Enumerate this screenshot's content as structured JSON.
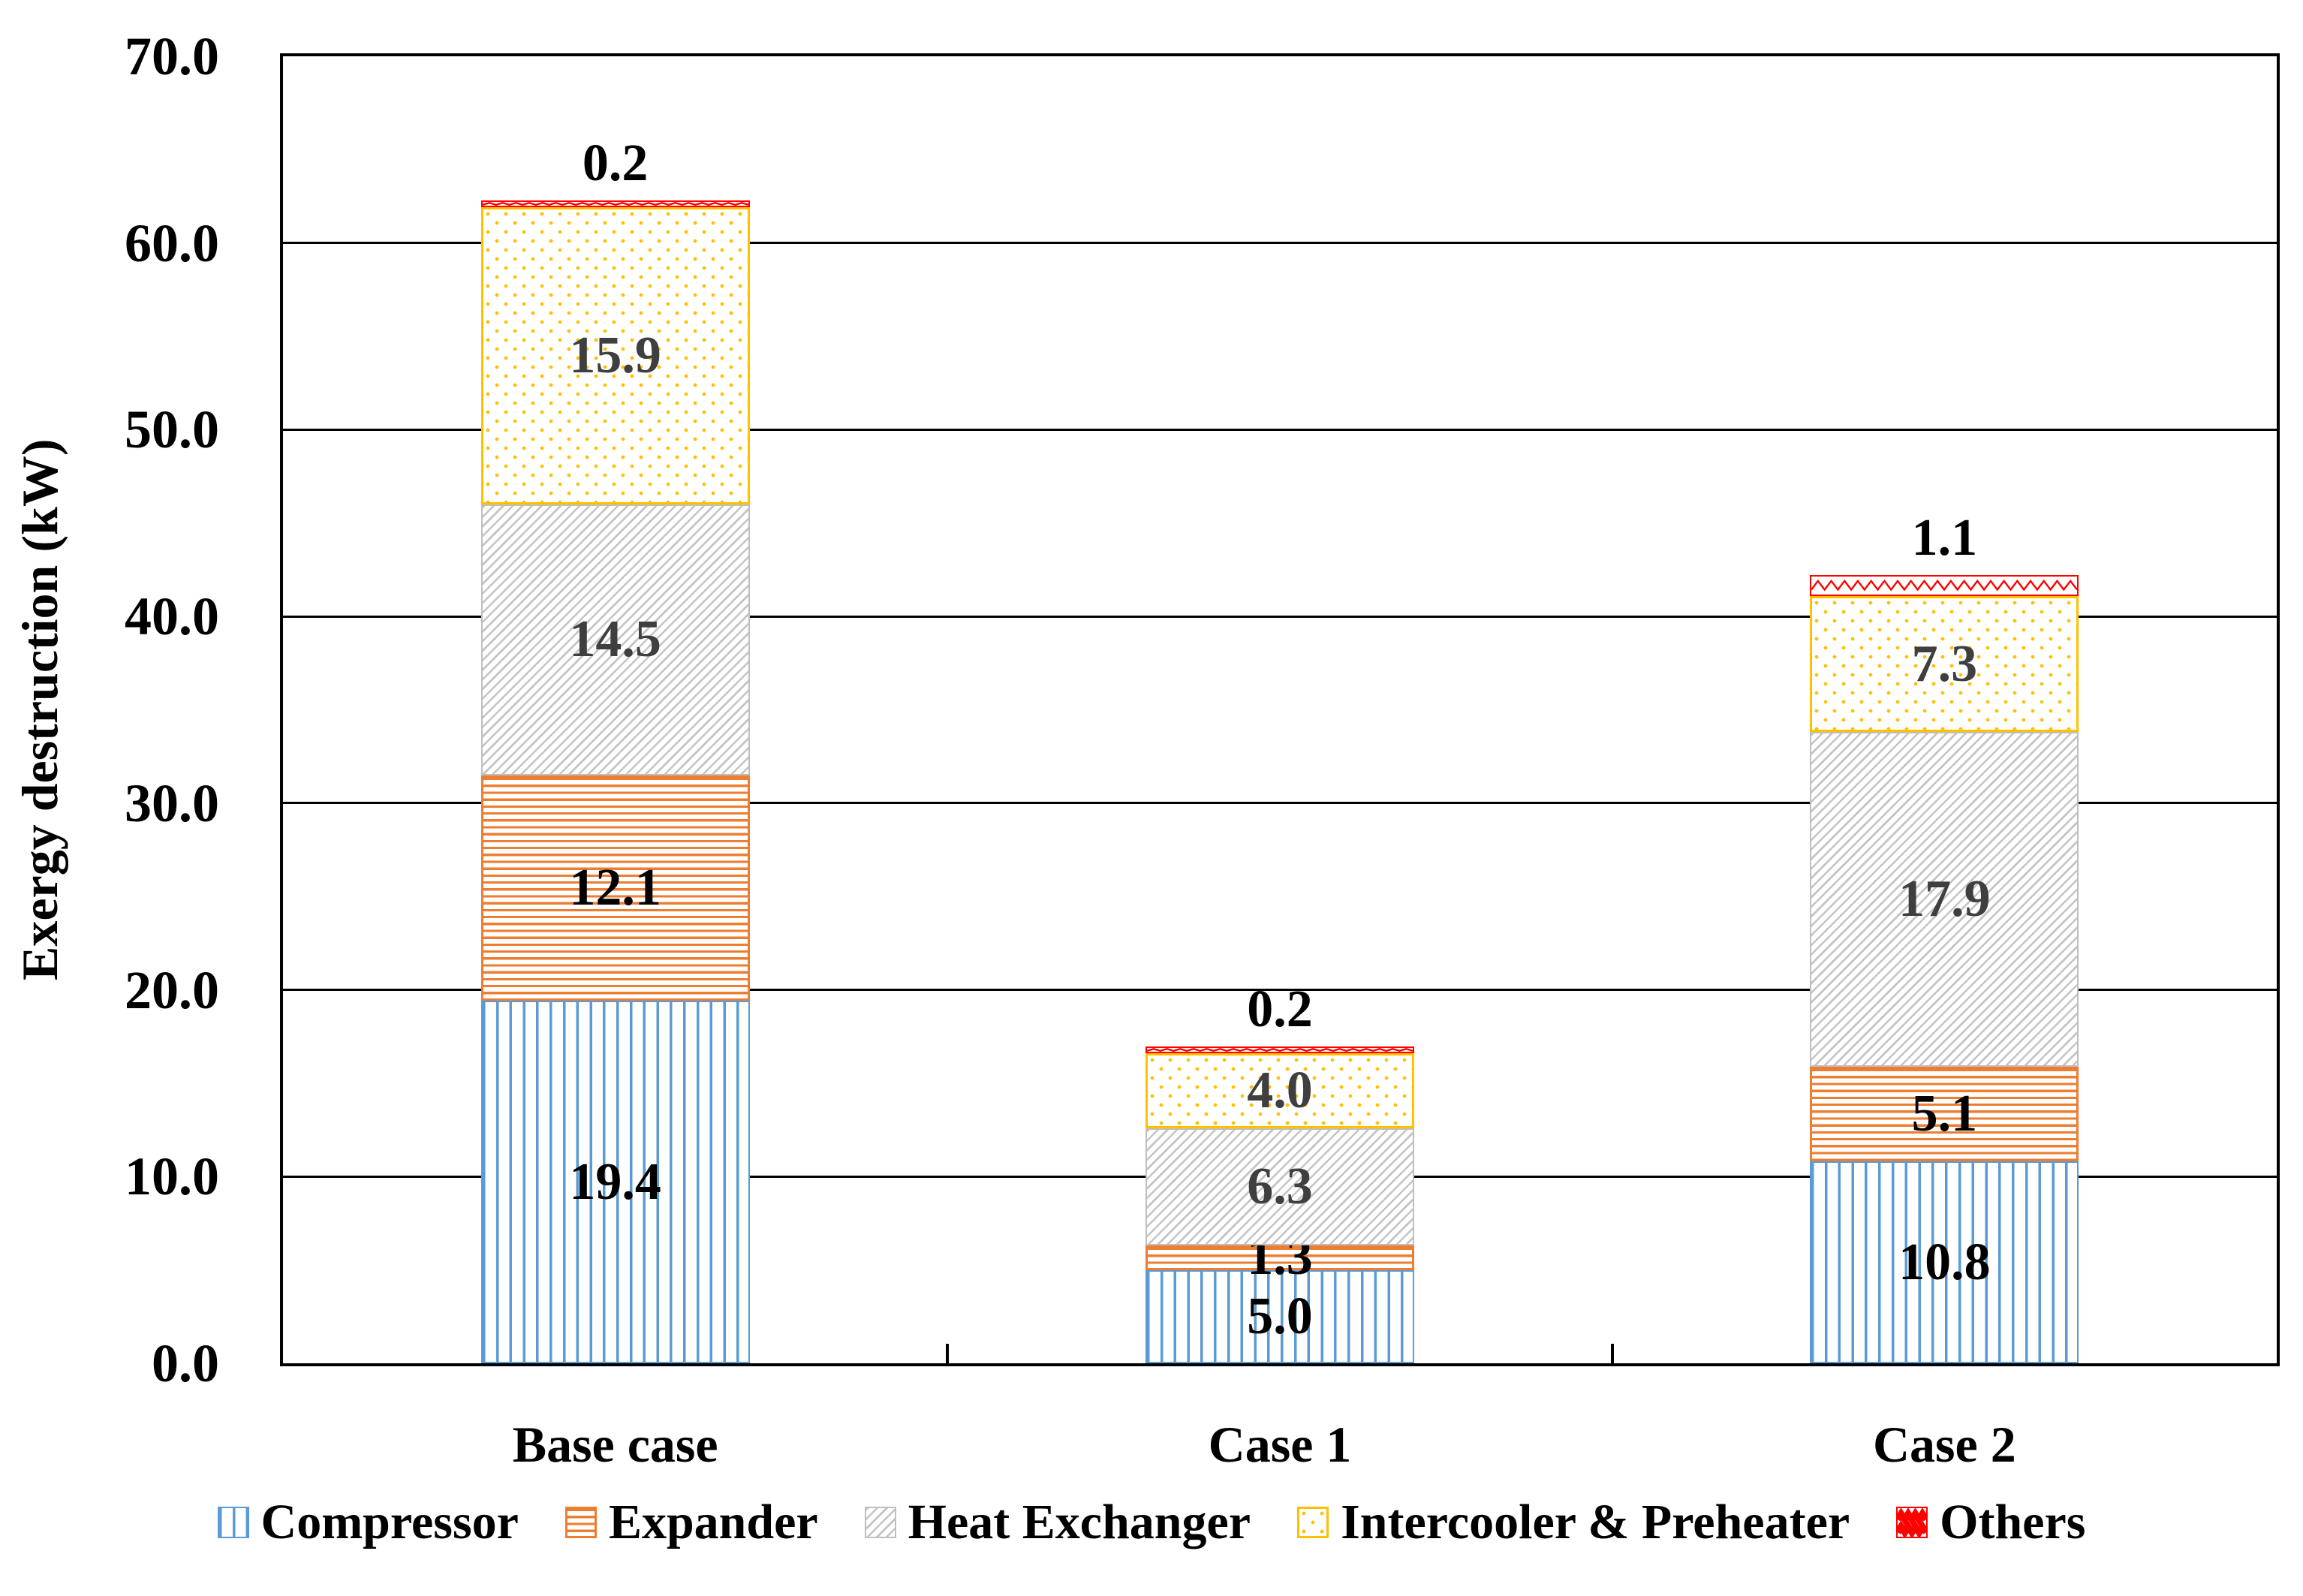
{
  "chart_data": {
    "type": "bar",
    "stacked": true,
    "title": "",
    "ylabel": "Exergy destruction (kW)",
    "xlabel": "",
    "ylim": [
      0,
      70
    ],
    "ytick_step": 10,
    "yticks": [
      "0.0",
      "10.0",
      "20.0",
      "30.0",
      "40.0",
      "50.0",
      "60.0",
      "70.0"
    ],
    "grid": "horizontal",
    "legend_position": "bottom",
    "categories": [
      "Base case",
      "Case 1",
      "Case 2"
    ],
    "series": [
      {
        "name": "Compressor",
        "pattern": "vertical-stripes",
        "color": "#5B9BD5",
        "values": [
          19.4,
          5.0,
          10.8
        ]
      },
      {
        "name": "Expander",
        "pattern": "horizontal-stripes",
        "color": "#ED7D31",
        "values": [
          12.1,
          1.3,
          5.1
        ]
      },
      {
        "name": "Heat Exchanger",
        "pattern": "diagonal-stripes",
        "color": "#BFBFBF",
        "values": [
          14.5,
          6.3,
          17.9
        ]
      },
      {
        "name": "Intercooler & Preheater",
        "pattern": "dots",
        "color": "#FFC000",
        "values": [
          15.9,
          4.0,
          7.3
        ]
      },
      {
        "name": "Others",
        "pattern": "zigzag",
        "color": "#FF0000",
        "values": [
          0.2,
          0.2,
          1.1
        ]
      }
    ],
    "totals": [
      62.1,
      16.8,
      42.2
    ]
  }
}
